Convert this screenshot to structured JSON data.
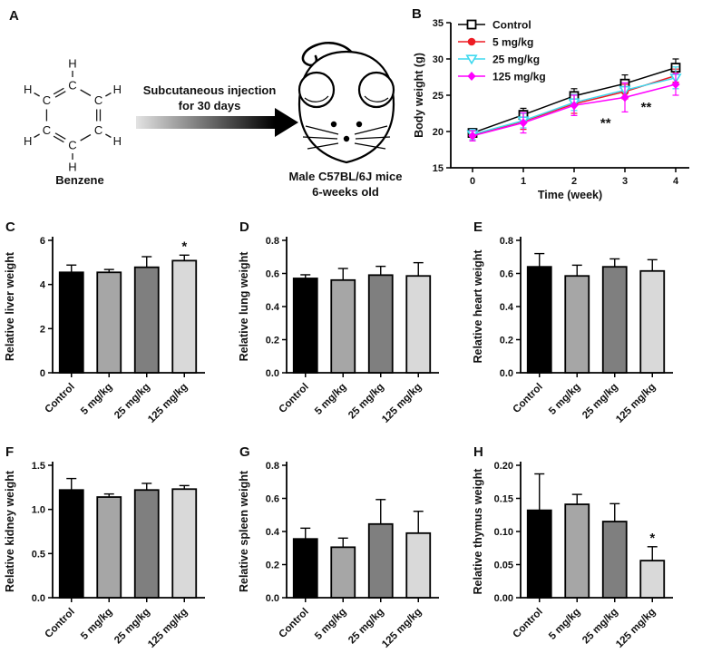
{
  "panel_a": {
    "label": "A",
    "molecule": {
      "name": "Benzene",
      "carbon": "C",
      "hydrogen": "H"
    },
    "arrow_text_1": "Subcutaneous injection",
    "arrow_text_2": "for 30 days",
    "mouse_caption_1": "Male C57BL/6J mice",
    "mouse_caption_2": "6-weeks old"
  },
  "groups": [
    "Control",
    "5 mg/kg",
    "25 mg/kg",
    "125 mg/kg"
  ],
  "bar_colors": [
    "#000000",
    "#a6a6a6",
    "#7f7f7f",
    "#d9d9d9"
  ],
  "chart_data": [
    {
      "panel": "B",
      "type": "line",
      "xlabel": "Time (week)",
      "ylabel": "Body weight (g)",
      "x": [
        0,
        1,
        2,
        3,
        4
      ],
      "ylim": [
        15,
        35
      ],
      "yticks": [
        "15",
        "20",
        "25",
        "30",
        "35"
      ],
      "xticks": [
        "0",
        "1",
        "2",
        "3",
        "4"
      ],
      "grid": false,
      "legend_position": "top-left",
      "series": [
        {
          "name": "Control",
          "color": "#000000",
          "marker": "square-open",
          "values": [
            19.8,
            22.3,
            24.9,
            26.6,
            28.8
          ],
          "errors": [
            0.6,
            0.9,
            1.0,
            1.2,
            1.2
          ]
        },
        {
          "name": "5 mg/kg",
          "color": "#ed1c24",
          "marker": "circle-filled",
          "values": [
            19.5,
            21.4,
            23.8,
            25.5,
            27.7
          ],
          "errors": [
            0.8,
            1.1,
            1.3,
            1.0,
            0.9
          ]
        },
        {
          "name": "25 mg/kg",
          "color": "#3fd9ef",
          "marker": "triangle-down-open",
          "values": [
            19.6,
            21.5,
            24.0,
            25.7,
            27.4
          ],
          "errors": [
            0.7,
            1.0,
            1.1,
            1.0,
            1.5
          ]
        },
        {
          "name": "125 mg/kg",
          "color": "#ff00ff",
          "marker": "diamond-filled",
          "values": [
            19.4,
            21.2,
            23.6,
            24.7,
            26.5
          ],
          "errors": [
            0.7,
            1.4,
            1.4,
            2.0,
            1.5
          ]
        }
      ],
      "annotations": [
        {
          "text": "**",
          "x": 2.62,
          "y": 21.2
        },
        {
          "text": "**",
          "x": 3.42,
          "y": 23.4
        }
      ]
    },
    {
      "panel": "C",
      "type": "bar",
      "ylabel": "Relative liver weight",
      "categories": [
        "Control",
        "5 mg/kg",
        "25 mg/kg",
        "125 mg/kg"
      ],
      "values": [
        4.55,
        4.55,
        4.78,
        5.08
      ],
      "errors": [
        0.33,
        0.13,
        0.48,
        0.25
      ],
      "sig": [
        "",
        "",
        "",
        "*"
      ],
      "ylim": [
        0,
        6
      ],
      "yticks": [
        "0",
        "2",
        "4",
        "6"
      ]
    },
    {
      "panel": "D",
      "type": "bar",
      "ylabel": "Relative lung weight",
      "categories": [
        "Control",
        "5 mg/kg",
        "25 mg/kg",
        "125 mg/kg"
      ],
      "values": [
        0.57,
        0.56,
        0.59,
        0.585
      ],
      "errors": [
        0.022,
        0.07,
        0.053,
        0.08
      ],
      "sig": [
        "",
        "",
        "",
        ""
      ],
      "ylim": [
        0,
        0.8
      ],
      "yticks": [
        "0.0",
        "0.2",
        "0.4",
        "0.6",
        "0.8"
      ]
    },
    {
      "panel": "E",
      "type": "bar",
      "ylabel": "Relative heart weight",
      "categories": [
        "Control",
        "5 mg/kg",
        "25 mg/kg",
        "125 mg/kg"
      ],
      "values": [
        0.64,
        0.585,
        0.64,
        0.615
      ],
      "errors": [
        0.08,
        0.065,
        0.048,
        0.068
      ],
      "sig": [
        "",
        "",
        "",
        ""
      ],
      "ylim": [
        0,
        0.8
      ],
      "yticks": [
        "0.0",
        "0.2",
        "0.4",
        "0.6",
        "0.8"
      ]
    },
    {
      "panel": "F",
      "type": "bar",
      "ylabel": "Relative kidney weight",
      "categories": [
        "Control",
        "5 mg/kg",
        "25 mg/kg",
        "125 mg/kg"
      ],
      "values": [
        1.22,
        1.14,
        1.22,
        1.23
      ],
      "errors": [
        0.13,
        0.035,
        0.075,
        0.04
      ],
      "sig": [
        "",
        "",
        "",
        ""
      ],
      "ylim": [
        0,
        1.5
      ],
      "yticks": [
        "0.0",
        "0.5",
        "1.0",
        "1.5"
      ]
    },
    {
      "panel": "G",
      "type": "bar",
      "ylabel": "Relative spleen weight",
      "categories": [
        "Control",
        "5 mg/kg",
        "25 mg/kg",
        "125 mg/kg"
      ],
      "values": [
        0.355,
        0.305,
        0.445,
        0.39
      ],
      "errors": [
        0.065,
        0.055,
        0.148,
        0.132
      ],
      "sig": [
        "",
        "",
        "",
        ""
      ],
      "ylim": [
        0,
        0.8
      ],
      "yticks": [
        "0.0",
        "0.2",
        "0.4",
        "0.6",
        "0.8"
      ]
    },
    {
      "panel": "H",
      "type": "bar",
      "ylabel": "Relative thymus weight",
      "categories": [
        "Control",
        "5 mg/kg",
        "25 mg/kg",
        "125 mg/kg"
      ],
      "values": [
        0.132,
        0.141,
        0.115,
        0.056
      ],
      "errors": [
        0.055,
        0.015,
        0.027,
        0.021
      ],
      "sig": [
        "",
        "",
        "",
        "*"
      ],
      "ylim": [
        0,
        0.2
      ],
      "yticks": [
        "0.00",
        "0.05",
        "0.10",
        "0.15",
        "0.20"
      ]
    }
  ]
}
